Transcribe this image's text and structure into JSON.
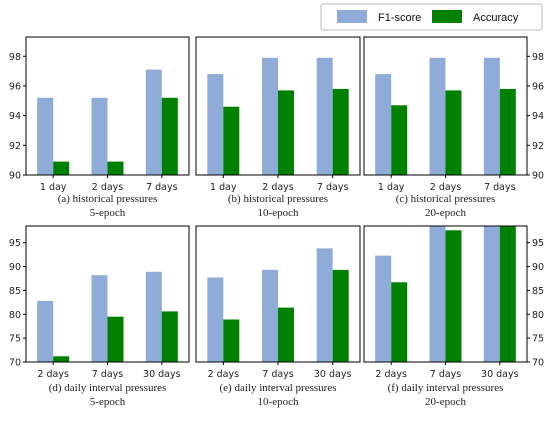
{
  "legend": {
    "entries": [
      {
        "label": "F1-score",
        "color": "#8eacd7"
      },
      {
        "label": "Accuracy",
        "color": "#008000"
      }
    ]
  },
  "chart_data": [
    {
      "type": "bar",
      "caption_line1": "(a)  historical pressures",
      "caption_line2": "5-epoch",
      "categories": [
        "1 day",
        "2 days",
        "7 days"
      ],
      "series": [
        {
          "name": "F1-score",
          "values": [
            95.2,
            95.2,
            97.1
          ]
        },
        {
          "name": "Accuracy",
          "values": [
            90.9,
            90.9,
            95.2
          ]
        }
      ],
      "ylim": [
        90,
        99.3
      ],
      "yticks": [
        90,
        92,
        94,
        96,
        98
      ],
      "ytick_side": "left"
    },
    {
      "type": "bar",
      "caption_line1": "(b) historical pressures",
      "caption_line2": "10-epoch",
      "categories": [
        "1 day",
        "2 days",
        "7 days"
      ],
      "series": [
        {
          "name": "F1-score",
          "values": [
            96.8,
            97.9,
            97.9
          ]
        },
        {
          "name": "Accuracy",
          "values": [
            94.6,
            95.7,
            95.8
          ]
        }
      ],
      "ylim": [
        90,
        99.3
      ],
      "yticks": [],
      "ytick_side": "none"
    },
    {
      "type": "bar",
      "caption_line1": "(c)  historical pressures",
      "caption_line2": "20-epoch",
      "categories": [
        "1 day",
        "2 days",
        "7 days"
      ],
      "series": [
        {
          "name": "F1-score",
          "values": [
            96.8,
            97.9,
            97.9
          ]
        },
        {
          "name": "Accuracy",
          "values": [
            94.7,
            95.7,
            95.8
          ]
        }
      ],
      "ylim": [
        90,
        99.3
      ],
      "yticks": [
        90,
        92,
        94,
        96,
        98
      ],
      "ytick_side": "right"
    },
    {
      "type": "bar",
      "caption_line1": "(d)  daily interval pressures",
      "caption_line2": "5-epoch",
      "categories": [
        "2 days",
        "7 days",
        "30 days"
      ],
      "series": [
        {
          "name": "F1-score",
          "values": [
            82.8,
            88.2,
            88.9
          ]
        },
        {
          "name": "Accuracy",
          "values": [
            71.2,
            79.5,
            80.6
          ]
        }
      ],
      "ylim": [
        70,
        98.5
      ],
      "yticks": [
        70,
        75,
        80,
        85,
        90,
        95
      ],
      "ytick_side": "left"
    },
    {
      "type": "bar",
      "caption_line1": "(e)  daily interval pressures",
      "caption_line2": "10-epoch",
      "categories": [
        "2 days",
        "7 days",
        "30 days"
      ],
      "series": [
        {
          "name": "F1-score",
          "values": [
            87.7,
            89.3,
            93.8
          ]
        },
        {
          "name": "Accuracy",
          "values": [
            78.9,
            81.4,
            89.3
          ]
        }
      ],
      "ylim": [
        70,
        98.5
      ],
      "yticks": [],
      "ytick_side": "none"
    },
    {
      "type": "bar",
      "caption_line1": "(f)  daily interval pressures",
      "caption_line2": "20-epoch",
      "categories": [
        "2 days",
        "7 days",
        "30 days"
      ],
      "series": [
        {
          "name": "F1-score",
          "values": [
            92.3,
            98.5,
            98.5
          ]
        },
        {
          "name": "Accuracy",
          "values": [
            86.7,
            97.6,
            98.5
          ]
        }
      ],
      "ylim": [
        70,
        98.5
      ],
      "yticks": [
        70,
        75,
        80,
        85,
        90,
        95
      ],
      "ytick_side": "right"
    }
  ]
}
